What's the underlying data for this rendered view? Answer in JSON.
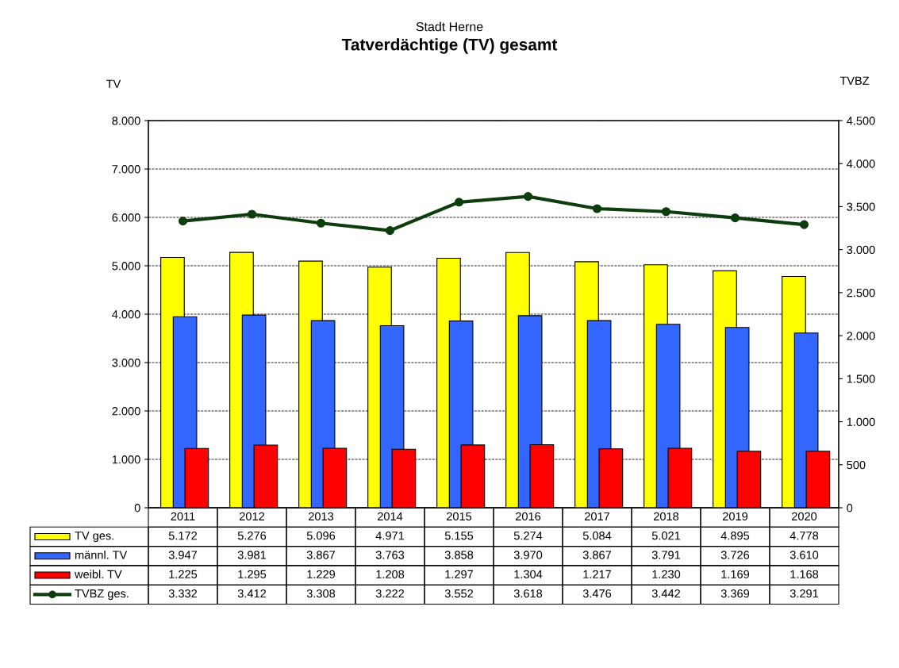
{
  "chart_data": {
    "type": "bar",
    "subtitle": "Stadt Herne",
    "title": "Tatverdächtige (TV) gesamt",
    "ylabel": "TV",
    "y2label": "TVBZ",
    "categories": [
      "2011",
      "2012",
      "2013",
      "2014",
      "2015",
      "2016",
      "2017",
      "2018",
      "2019",
      "2020"
    ],
    "series": [
      {
        "name": "TV ges.",
        "color": "#ffff00",
        "values": [
          5172,
          5276,
          5096,
          4971,
          5155,
          5274,
          5084,
          5021,
          4895,
          4778
        ],
        "value_labels": [
          "5.172",
          "5.276",
          "5.096",
          "4.971",
          "5.155",
          "5.274",
          "5.084",
          "5.021",
          "4.895",
          "4.778"
        ]
      },
      {
        "name": "männl. TV",
        "color": "#3366ff",
        "values": [
          3947,
          3981,
          3867,
          3763,
          3858,
          3970,
          3867,
          3791,
          3726,
          3610
        ],
        "value_labels": [
          "3.947",
          "3.981",
          "3.867",
          "3.763",
          "3.858",
          "3.970",
          "3.867",
          "3.791",
          "3.726",
          "3.610"
        ]
      },
      {
        "name": "weibl. TV",
        "color": "#ff0000",
        "values": [
          1225,
          1295,
          1229,
          1208,
          1297,
          1304,
          1217,
          1230,
          1169,
          1168
        ],
        "value_labels": [
          "1.225",
          "1.295",
          "1.229",
          "1.208",
          "1.297",
          "1.304",
          "1.217",
          "1.230",
          "1.169",
          "1.168"
        ]
      },
      {
        "name": "TVBZ ges.",
        "type": "line",
        "axis": "y2",
        "color": "#0d3d0d",
        "marker": "circle",
        "values": [
          3332,
          3412,
          3308,
          3222,
          3552,
          3618,
          3476,
          3442,
          3369,
          3291
        ],
        "value_labels": [
          "3.332",
          "3.412",
          "3.308",
          "3.222",
          "3.552",
          "3.618",
          "3.476",
          "3.442",
          "3.369",
          "3.291"
        ]
      }
    ],
    "ylim": [
      0,
      8000
    ],
    "yticks": [
      {
        "value": 0,
        "label": "0"
      },
      {
        "value": 1000,
        "label": "1.000"
      },
      {
        "value": 2000,
        "label": "2.000"
      },
      {
        "value": 3000,
        "label": "3.000"
      },
      {
        "value": 4000,
        "label": "4.000"
      },
      {
        "value": 5000,
        "label": "5.000"
      },
      {
        "value": 6000,
        "label": "6.000"
      },
      {
        "value": 7000,
        "label": "7.000"
      },
      {
        "value": 8000,
        "label": "8.000"
      }
    ],
    "y2lim": [
      0,
      4500
    ],
    "y2ticks": [
      {
        "value": 0,
        "label": "0"
      },
      {
        "value": 500,
        "label": "500"
      },
      {
        "value": 1000,
        "label": "1.000"
      },
      {
        "value": 1500,
        "label": "1.500"
      },
      {
        "value": 2000,
        "label": "2.000"
      },
      {
        "value": 2500,
        "label": "2.500"
      },
      {
        "value": 3000,
        "label": "3.000"
      },
      {
        "value": 3500,
        "label": "3.500"
      },
      {
        "value": 4000,
        "label": "4.000"
      },
      {
        "value": 4500,
        "label": "4.500"
      }
    ],
    "grid": "y",
    "legend": "bottom"
  }
}
